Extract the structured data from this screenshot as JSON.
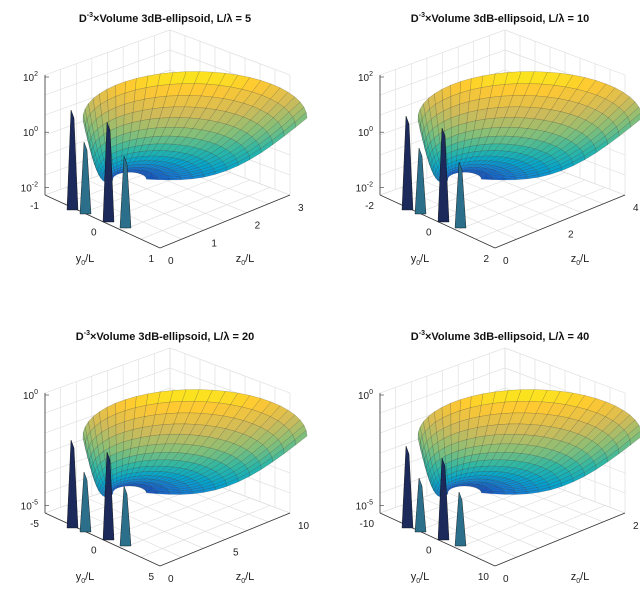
{
  "chart_data": [
    {
      "type": "surface",
      "title": {
        "prefix": "D",
        "prefix_sup": "-3",
        "mid": "×Volume 3dB-ellipsoid, L/",
        "lambda": "λ",
        "suffix": " = 5"
      },
      "L_over_lambda": 5,
      "xlabel": {
        "main": "y",
        "sub": "0",
        "rest": "/L"
      },
      "ylabel": {
        "main": "z",
        "sub": "0",
        "rest": "/L"
      },
      "zscale": "log",
      "x_ticks": [
        "-1",
        "0",
        "1"
      ],
      "y_ticks": [
        "0",
        "1",
        "2",
        "3"
      ],
      "z_ticks": [
        {
          "base": "10",
          "exp": "2"
        },
        {
          "base": "10",
          "exp": "0"
        },
        {
          "base": "10",
          "exp": "-2"
        }
      ],
      "xlim": [
        -1,
        1
      ],
      "ylim": [
        0,
        3
      ],
      "zlim": [
        0.01,
        100
      ],
      "grid": true,
      "colormap": "parula"
    },
    {
      "type": "surface",
      "title": {
        "prefix": "D",
        "prefix_sup": "-3",
        "mid": "×Volume 3dB-ellipsoid, L/",
        "lambda": "λ",
        "suffix": " = 10"
      },
      "L_over_lambda": 10,
      "xlabel": {
        "main": "y",
        "sub": "0",
        "rest": "/L"
      },
      "ylabel": {
        "main": "z",
        "sub": "0",
        "rest": "/L"
      },
      "zscale": "log",
      "x_ticks": [
        "-2",
        "0",
        "2"
      ],
      "y_ticks": [
        "0",
        "2",
        "4"
      ],
      "z_ticks": [
        {
          "base": "10",
          "exp": "2"
        },
        {
          "base": "10",
          "exp": "0"
        },
        {
          "base": "10",
          "exp": "-2"
        }
      ],
      "xlim": [
        -2,
        2
      ],
      "ylim": [
        0,
        5
      ],
      "zlim": [
        0.01,
        100
      ],
      "grid": true,
      "colormap": "parula"
    },
    {
      "type": "surface",
      "title": {
        "prefix": "D",
        "prefix_sup": "-3",
        "mid": "×Volume 3dB-ellipsoid, L/",
        "lambda": "λ",
        "suffix": " = 20"
      },
      "L_over_lambda": 20,
      "xlabel": {
        "main": "y",
        "sub": "0",
        "rest": "/L"
      },
      "ylabel": {
        "main": "z",
        "sub": "0",
        "rest": "/L"
      },
      "zscale": "log",
      "x_ticks": [
        "-5",
        "0",
        "5"
      ],
      "y_ticks": [
        "0",
        "5",
        "10"
      ],
      "z_ticks": [
        {
          "base": "10",
          "exp": "0"
        },
        {
          "base": "10",
          "exp": "-5"
        }
      ],
      "xlim": [
        -5,
        5
      ],
      "ylim": [
        0,
        10
      ],
      "zlim": [
        1e-05,
        1
      ],
      "grid": true,
      "colormap": "parula"
    },
    {
      "type": "surface",
      "title": {
        "prefix": "D",
        "prefix_sup": "-3",
        "mid": "×Volume 3dB-ellipsoid, L/",
        "lambda": "λ",
        "suffix": " = 40"
      },
      "L_over_lambda": 40,
      "xlabel": {
        "main": "y",
        "sub": "0",
        "rest": "/L"
      },
      "ylabel": {
        "main": "z",
        "sub": "0",
        "rest": "/L"
      },
      "zscale": "log",
      "x_ticks": [
        "-10",
        "0",
        "10"
      ],
      "y_ticks": [
        "0",
        "2"
      ],
      "z_ticks": [
        {
          "base": "10",
          "exp": "0"
        },
        {
          "base": "10",
          "exp": "-5"
        }
      ],
      "xlim": [
        -10,
        10
      ],
      "ylim": [
        0,
        20
      ],
      "zlim": [
        1e-05,
        1
      ],
      "grid": true,
      "colormap": "parula"
    }
  ],
  "colors": {
    "parula": [
      "#352a87",
      "#0f5cdd",
      "#1481d6",
      "#06a4ca",
      "#2eb7a4",
      "#87bf77",
      "#d1bb59",
      "#fec832",
      "#f9fb0e"
    ],
    "axis": "#333333",
    "grid": "#dcdcdc",
    "mesh": "#1a1a1a"
  }
}
